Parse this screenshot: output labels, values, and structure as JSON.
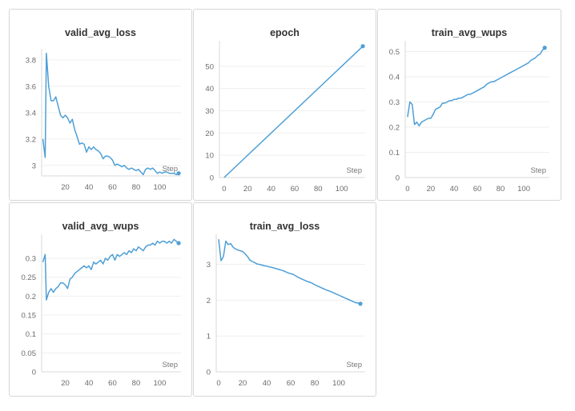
{
  "chart_data": [
    {
      "type": "line",
      "title": "valid_avg_loss",
      "xlabel": "Step",
      "ylabel": "",
      "color": "#4e9fd6",
      "x_ticks": [
        20,
        40,
        60,
        80,
        100
      ],
      "y_ticks": [
        3,
        3.2,
        3.4,
        3.6,
        3.8
      ],
      "xlim": [
        0,
        118
      ],
      "ylim": [
        2.92,
        3.86
      ],
      "series": [
        {
          "x": [
            1,
            3,
            4,
            6,
            8,
            10,
            12,
            14,
            16,
            18,
            20,
            22,
            24,
            26,
            28,
            30,
            32,
            34,
            36,
            38,
            40,
            42,
            44,
            46,
            48,
            50,
            52,
            54,
            56,
            58,
            60,
            62,
            64,
            66,
            68,
            70,
            72,
            74,
            76,
            78,
            80,
            82,
            84,
            86,
            88,
            90,
            92,
            94,
            96,
            98,
            100,
            102,
            104,
            106,
            108,
            110,
            112,
            114,
            116
          ],
          "y": [
            3.2,
            3.06,
            3.85,
            3.6,
            3.49,
            3.49,
            3.52,
            3.45,
            3.38,
            3.36,
            3.38,
            3.36,
            3.32,
            3.35,
            3.27,
            3.22,
            3.16,
            3.17,
            3.16,
            3.1,
            3.14,
            3.12,
            3.14,
            3.12,
            3.11,
            3.09,
            3.05,
            3.07,
            3.07,
            3.06,
            3.04,
            3.0,
            3.01,
            3.0,
            2.99,
            3.0,
            2.98,
            2.97,
            2.98,
            2.97,
            2.96,
            2.97,
            2.95,
            2.93,
            2.97,
            2.98,
            2.97,
            2.98,
            2.96,
            2.94,
            2.95,
            2.94,
            2.95,
            2.95,
            2.94,
            2.94,
            2.94,
            2.93,
            2.94
          ]
        }
      ]
    },
    {
      "type": "line",
      "title": "epoch",
      "xlabel": "Step",
      "ylabel": "",
      "color": "#4e9fd6",
      "x_ticks": [
        0,
        20,
        40,
        60,
        80,
        100
      ],
      "y_ticks": [
        0,
        10,
        20,
        30,
        40,
        50
      ],
      "xlim": [
        -4,
        120
      ],
      "ylim": [
        0,
        60
      ],
      "series": [
        {
          "x": [
            0,
            118
          ],
          "y": [
            0,
            59
          ]
        }
      ]
    },
    {
      "type": "line",
      "title": "train_avg_wups",
      "xlabel": "Step",
      "ylabel": "",
      "color": "#4e9fd6",
      "x_ticks": [
        0,
        20,
        40,
        60,
        80,
        100
      ],
      "y_ticks": [
        0,
        0.1,
        0.2,
        0.3,
        0.4,
        0.5
      ],
      "xlim": [
        -2,
        122
      ],
      "ylim": [
        0,
        0.53
      ],
      "series": [
        {
          "x": [
            0,
            2,
            4,
            6,
            8,
            10,
            12,
            14,
            16,
            18,
            20,
            22,
            24,
            26,
            28,
            30,
            32,
            34,
            36,
            38,
            40,
            42,
            44,
            46,
            48,
            50,
            52,
            54,
            56,
            58,
            60,
            62,
            64,
            66,
            68,
            70,
            72,
            74,
            76,
            78,
            80,
            82,
            84,
            86,
            88,
            90,
            92,
            94,
            96,
            98,
            100,
            102,
            104,
            106,
            108,
            110,
            112,
            114,
            116,
            118
          ],
          "y": [
            0.24,
            0.3,
            0.29,
            0.21,
            0.22,
            0.205,
            0.22,
            0.225,
            0.23,
            0.235,
            0.235,
            0.25,
            0.27,
            0.275,
            0.28,
            0.295,
            0.295,
            0.3,
            0.305,
            0.305,
            0.31,
            0.31,
            0.315,
            0.315,
            0.32,
            0.325,
            0.33,
            0.33,
            0.335,
            0.34,
            0.345,
            0.35,
            0.355,
            0.36,
            0.37,
            0.375,
            0.38,
            0.38,
            0.385,
            0.39,
            0.395,
            0.4,
            0.405,
            0.41,
            0.415,
            0.42,
            0.425,
            0.43,
            0.435,
            0.44,
            0.445,
            0.45,
            0.455,
            0.465,
            0.47,
            0.475,
            0.485,
            0.49,
            0.505,
            0.515
          ]
        }
      ]
    },
    {
      "type": "line",
      "title": "valid_avg_wups",
      "xlabel": "Step",
      "ylabel": "",
      "color": "#4e9fd6",
      "x_ticks": [
        20,
        40,
        60,
        80,
        100
      ],
      "y_ticks": [
        0,
        0.05,
        0.1,
        0.15,
        0.2,
        0.25,
        0.3
      ],
      "xlim": [
        0,
        118
      ],
      "ylim": [
        0,
        0.355
      ],
      "series": [
        {
          "x": [
            1,
            3,
            4,
            6,
            8,
            10,
            12,
            14,
            16,
            18,
            20,
            22,
            24,
            26,
            28,
            30,
            32,
            34,
            36,
            38,
            40,
            42,
            44,
            46,
            48,
            50,
            52,
            54,
            56,
            58,
            60,
            62,
            64,
            66,
            68,
            70,
            72,
            74,
            76,
            78,
            80,
            82,
            84,
            86,
            88,
            90,
            92,
            94,
            96,
            98,
            100,
            102,
            104,
            106,
            108,
            110,
            112,
            114,
            116
          ],
          "y": [
            0.29,
            0.31,
            0.19,
            0.21,
            0.22,
            0.21,
            0.22,
            0.225,
            0.235,
            0.235,
            0.23,
            0.22,
            0.245,
            0.25,
            0.26,
            0.265,
            0.27,
            0.275,
            0.28,
            0.275,
            0.28,
            0.27,
            0.29,
            0.285,
            0.29,
            0.295,
            0.285,
            0.3,
            0.295,
            0.305,
            0.31,
            0.295,
            0.31,
            0.305,
            0.31,
            0.315,
            0.31,
            0.32,
            0.315,
            0.325,
            0.32,
            0.33,
            0.325,
            0.32,
            0.33,
            0.335,
            0.335,
            0.34,
            0.335,
            0.345,
            0.34,
            0.345,
            0.345,
            0.34,
            0.345,
            0.34,
            0.35,
            0.345,
            0.34
          ]
        }
      ]
    },
    {
      "type": "line",
      "title": "train_avg_loss",
      "xlabel": "Step",
      "ylabel": "",
      "color": "#4e9fd6",
      "x_ticks": [
        0,
        20,
        40,
        60,
        80,
        100
      ],
      "y_ticks": [
        0,
        1,
        2,
        3
      ],
      "xlim": [
        -2,
        122
      ],
      "ylim": [
        0,
        3.75
      ],
      "series": [
        {
          "x": [
            0,
            2,
            4,
            6,
            8,
            10,
            12,
            14,
            16,
            18,
            20,
            22,
            24,
            26,
            28,
            30,
            32,
            34,
            36,
            38,
            40,
            42,
            44,
            46,
            48,
            50,
            52,
            54,
            56,
            58,
            60,
            62,
            64,
            66,
            68,
            70,
            72,
            74,
            76,
            78,
            80,
            82,
            84,
            86,
            88,
            90,
            92,
            94,
            96,
            98,
            100,
            102,
            104,
            106,
            108,
            110,
            112,
            114,
            116,
            118
          ],
          "y": [
            3.7,
            3.1,
            3.22,
            3.65,
            3.55,
            3.58,
            3.48,
            3.43,
            3.4,
            3.38,
            3.36,
            3.3,
            3.22,
            3.12,
            3.08,
            3.05,
            3.01,
            3.0,
            2.98,
            2.96,
            2.95,
            2.93,
            2.92,
            2.9,
            2.88,
            2.86,
            2.84,
            2.82,
            2.79,
            2.76,
            2.74,
            2.72,
            2.68,
            2.64,
            2.61,
            2.58,
            2.55,
            2.52,
            2.5,
            2.47,
            2.43,
            2.4,
            2.37,
            2.34,
            2.31,
            2.28,
            2.26,
            2.23,
            2.2,
            2.17,
            2.14,
            2.11,
            2.08,
            2.05,
            2.02,
            1.99,
            1.96,
            1.93,
            1.92,
            1.9
          ]
        }
      ]
    }
  ]
}
